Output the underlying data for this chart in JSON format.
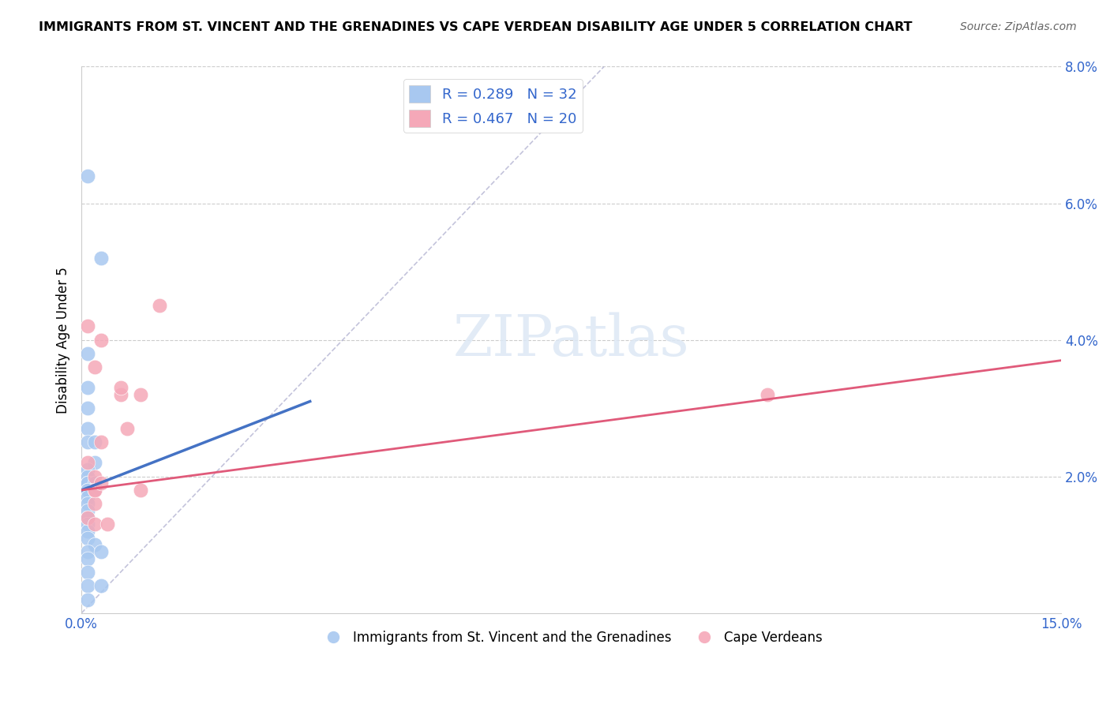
{
  "title": "IMMIGRANTS FROM ST. VINCENT AND THE GRENADINES VS CAPE VERDEAN DISABILITY AGE UNDER 5 CORRELATION CHART",
  "source": "Source: ZipAtlas.com",
  "xlabel": "",
  "ylabel": "Disability Age Under 5",
  "xlim": [
    0,
    0.15
  ],
  "ylim": [
    0,
    0.08
  ],
  "blue_color": "#a8c8f0",
  "pink_color": "#f5a8b8",
  "blue_line_color": "#4472c4",
  "pink_line_color": "#e05a7a",
  "dashed_line_color": "#aaaacc",
  "legend_r_blue": "R = 0.289",
  "legend_n_blue": "N = 32",
  "legend_r_pink": "R = 0.467",
  "legend_n_pink": "N = 20",
  "legend_label_blue": "Immigrants from St. Vincent and the Grenadines",
  "legend_label_pink": "Cape Verdeans",
  "watermark": "ZIPatlas",
  "blue_points": [
    [
      0.001,
      0.064
    ],
    [
      0.001,
      0.038
    ],
    [
      0.003,
      0.052
    ],
    [
      0.001,
      0.033
    ],
    [
      0.001,
      0.03
    ],
    [
      0.001,
      0.027
    ],
    [
      0.001,
      0.025
    ],
    [
      0.002,
      0.025
    ],
    [
      0.002,
      0.022
    ],
    [
      0.001,
      0.021
    ],
    [
      0.001,
      0.02
    ],
    [
      0.001,
      0.019
    ],
    [
      0.001,
      0.019
    ],
    [
      0.002,
      0.019
    ],
    [
      0.001,
      0.018
    ],
    [
      0.001,
      0.018
    ],
    [
      0.002,
      0.018
    ],
    [
      0.001,
      0.017
    ],
    [
      0.001,
      0.016
    ],
    [
      0.001,
      0.015
    ],
    [
      0.001,
      0.014
    ],
    [
      0.001,
      0.013
    ],
    [
      0.001,
      0.012
    ],
    [
      0.001,
      0.011
    ],
    [
      0.002,
      0.01
    ],
    [
      0.001,
      0.009
    ],
    [
      0.003,
      0.009
    ],
    [
      0.001,
      0.008
    ],
    [
      0.001,
      0.006
    ],
    [
      0.001,
      0.004
    ],
    [
      0.003,
      0.004
    ],
    [
      0.001,
      0.002
    ]
  ],
  "pink_points": [
    [
      0.001,
      0.042
    ],
    [
      0.002,
      0.036
    ],
    [
      0.003,
      0.04
    ],
    [
      0.001,
      0.022
    ],
    [
      0.002,
      0.02
    ],
    [
      0.002,
      0.018
    ],
    [
      0.003,
      0.025
    ],
    [
      0.002,
      0.016
    ],
    [
      0.002,
      0.018
    ],
    [
      0.003,
      0.019
    ],
    [
      0.001,
      0.014
    ],
    [
      0.002,
      0.013
    ],
    [
      0.004,
      0.013
    ],
    [
      0.007,
      0.027
    ],
    [
      0.006,
      0.032
    ],
    [
      0.006,
      0.033
    ],
    [
      0.009,
      0.018
    ],
    [
      0.009,
      0.032
    ],
    [
      0.012,
      0.045
    ],
    [
      0.105,
      0.032
    ]
  ],
  "blue_trend_x": [
    0.0,
    0.035
  ],
  "blue_trend_y": [
    0.018,
    0.031
  ],
  "pink_trend_x": [
    0.0,
    0.15
  ],
  "pink_trend_y": [
    0.018,
    0.037
  ],
  "diag_line_x": [
    0.0,
    0.08
  ],
  "diag_line_y": [
    0.0,
    0.08
  ]
}
